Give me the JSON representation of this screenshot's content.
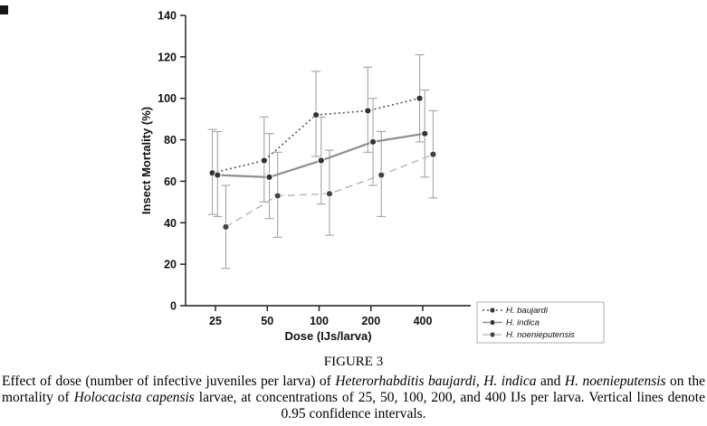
{
  "figure": {
    "label": "FIGURE 3",
    "caption_segments": [
      {
        "text": "Effect of dose (number of infective juveniles per larva) of ",
        "italic": false
      },
      {
        "text": "Heterorhabditis baujardi",
        "italic": true
      },
      {
        "text": ", ",
        "italic": false
      },
      {
        "text": "H. indica",
        "italic": true
      },
      {
        "text": " and ",
        "italic": false
      },
      {
        "text": "H. noenieputensis",
        "italic": true
      },
      {
        "text": " on the mortality of ",
        "italic": false
      },
      {
        "text": "Holocacista capensis",
        "italic": true
      },
      {
        "text": " larvae, at concentrations of 25, 50, 100, 200, and 400 IJs per larva. Vertical lines denote 0.95 confidence intervals.",
        "italic": false
      }
    ]
  },
  "chart_data": {
    "type": "line",
    "title": "",
    "xlabel": "Dose (IJs/larva)",
    "ylabel": "Insect Mortality (%)",
    "categories": [
      25,
      50,
      100,
      200,
      400
    ],
    "ylim": [
      0,
      140
    ],
    "ytick_step": 20,
    "grid": false,
    "legend_position": "bottom-right-outside",
    "error_bars": "0.95 confidence intervals",
    "series": [
      {
        "name": "H. baujardi",
        "style": "dotted",
        "color": "#555555",
        "marker_fill": "#333333",
        "x_offset": -0.06,
        "values": [
          64,
          70,
          92,
          94,
          100
        ],
        "ci_low": [
          44,
          50,
          72,
          74,
          79
        ],
        "ci_high": [
          85,
          91,
          113,
          115,
          121
        ]
      },
      {
        "name": "H. indica",
        "style": "solid",
        "color": "#8f8f8f",
        "marker_fill": "#333333",
        "x_offset": 0.04,
        "values": [
          63,
          62,
          70,
          79,
          83
        ],
        "ci_low": [
          43,
          42,
          49,
          58,
          62
        ],
        "ci_high": [
          84,
          83,
          91,
          100,
          104
        ]
      },
      {
        "name": "H. noenieputensis",
        "style": "dashed",
        "color": "#bdbdbd",
        "marker_fill": "#444444",
        "x_offset": 0.2,
        "values": [
          38,
          53,
          54,
          63,
          73
        ],
        "ci_low": [
          18,
          33,
          34,
          43,
          52
        ],
        "ci_high": [
          58,
          74,
          75,
          84,
          94
        ]
      }
    ]
  }
}
